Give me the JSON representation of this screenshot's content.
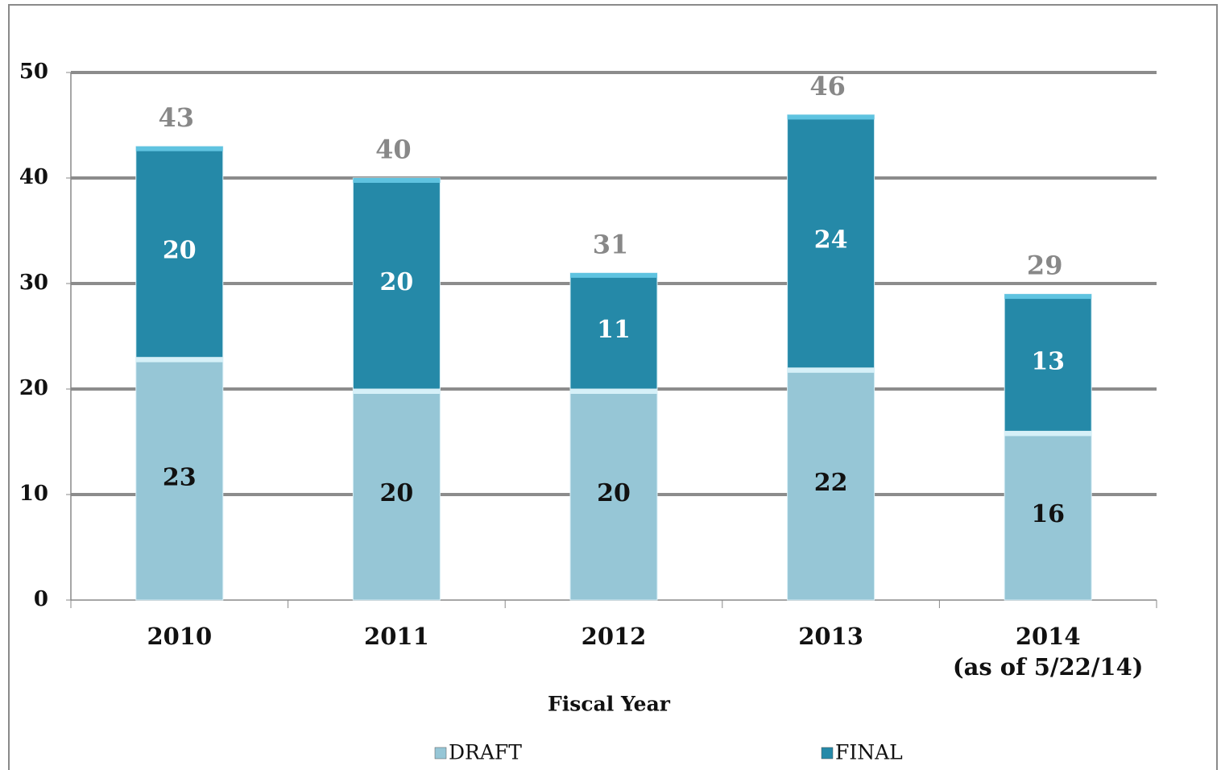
{
  "chart_data": {
    "type": "stacked_bar",
    "categories": [
      "2010",
      "2011",
      "2012",
      "2013",
      "2014\n(as of 5/22/14)"
    ],
    "series": [
      {
        "name": "DRAFT",
        "color": "#96c6d6",
        "values": [
          23,
          20,
          20,
          22,
          16
        ]
      },
      {
        "name": "FINAL",
        "color": "#2589a8",
        "values": [
          20,
          20,
          11,
          24,
          13
        ]
      }
    ],
    "totals": [
      43,
      40,
      31,
      46,
      29
    ],
    "x_label": "Fiscal Year",
    "ylim": [
      0,
      50
    ],
    "yticks": [
      0,
      10,
      20,
      30,
      40,
      50
    ],
    "grid": true,
    "legend": "bottom"
  }
}
